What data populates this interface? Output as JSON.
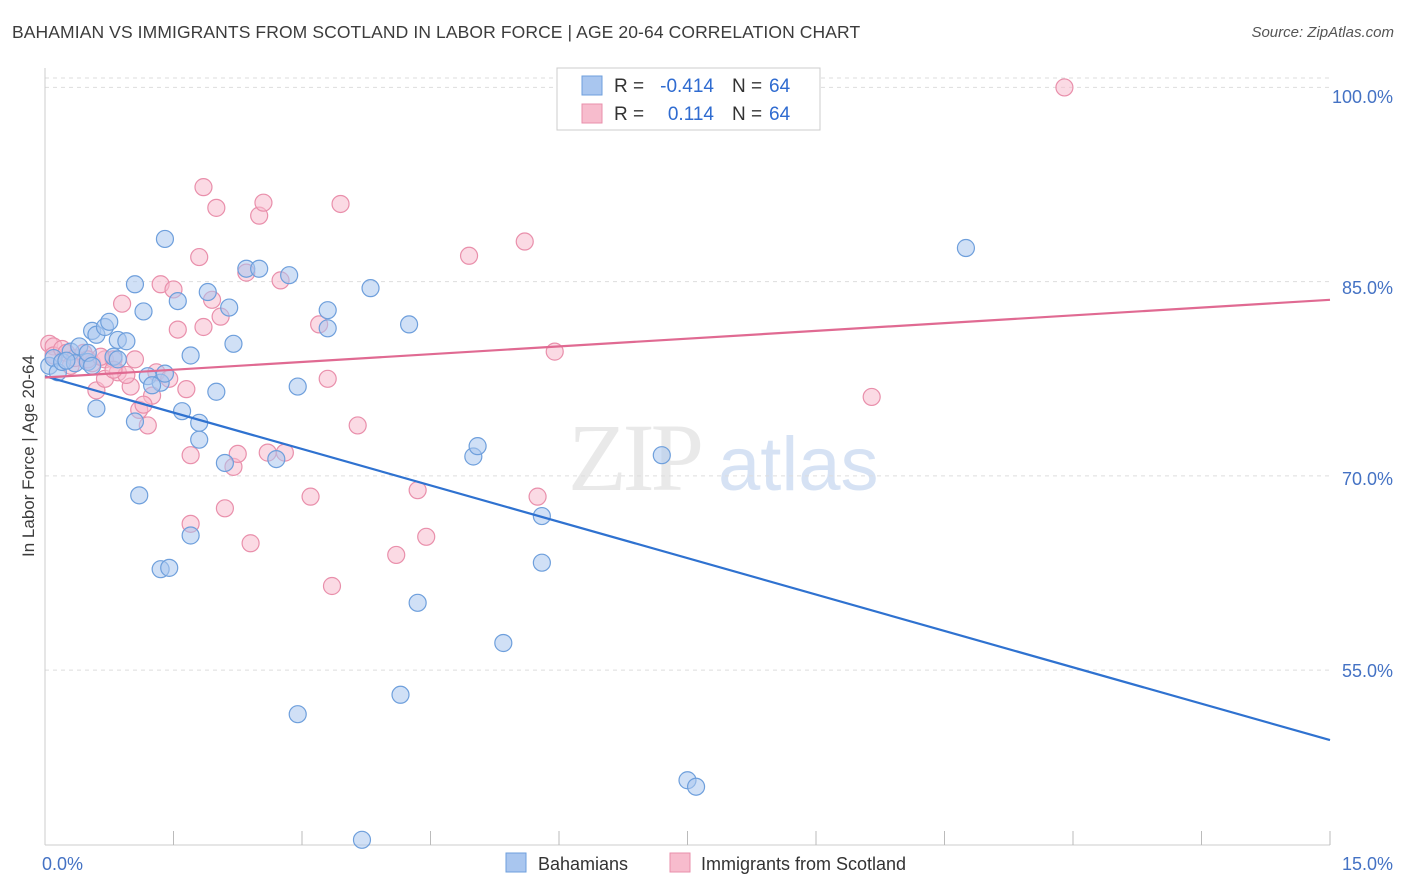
{
  "header": {
    "title": "BAHAMIAN VS IMMIGRANTS FROM SCOTLAND IN LABOR FORCE | AGE 20-64 CORRELATION CHART",
    "source": "Source: ZipAtlas.com"
  },
  "watermark": {
    "zip": "ZIP",
    "atlas": "atlas"
  },
  "colors": {
    "blue_fill": "#a9c6ef",
    "blue_stroke": "#6e9fdc",
    "blue_line": "#2f72d0",
    "pink_fill": "#f7bccd",
    "pink_stroke": "#e98fab",
    "pink_line": "#e06a92",
    "tick_text": "#4472c4",
    "grid": "#dddddd"
  },
  "legend_top": {
    "rows": [
      {
        "r_label": "R =",
        "r_value": "-0.414",
        "n_label": "N =",
        "n_value": "64"
      },
      {
        "r_label": "R =",
        "r_value": "0.114",
        "n_label": "N =",
        "n_value": "64"
      }
    ]
  },
  "legend_bottom": {
    "items": [
      {
        "label": "Bahamians"
      },
      {
        "label": "Immigrants from Scotland"
      }
    ]
  },
  "chart_data": {
    "type": "scatter",
    "title": "BAHAMIAN VS IMMIGRANTS FROM SCOTLAND IN LABOR FORCE | AGE 20-64 CORRELATION CHART",
    "xlabel": "",
    "ylabel": "In Labor Force | Age 20-64",
    "xlim": [
      0,
      15
    ],
    "ylim": [
      41.5,
      101.5
    ],
    "x_tick_labels": [
      "0.0%",
      "15.0%"
    ],
    "y_ticks": [
      55,
      70,
      85,
      100
    ],
    "y_tick_labels": [
      "55.0%",
      "70.0%",
      "85.0%",
      "100.0%"
    ],
    "grid": true,
    "legend_position": "top-center",
    "series": [
      {
        "name": "Bahamians",
        "r": -0.414,
        "n": 64,
        "trend": {
          "x": [
            0,
            15
          ],
          "y": [
            77.7,
            49.6
          ]
        },
        "points": [
          [
            0.05,
            78.5
          ],
          [
            0.1,
            79.1
          ],
          [
            0.15,
            78.0
          ],
          [
            0.2,
            78.8
          ],
          [
            0.3,
            79.6
          ],
          [
            0.35,
            78.7
          ],
          [
            0.4,
            80.0
          ],
          [
            0.5,
            78.8
          ],
          [
            0.5,
            79.5
          ],
          [
            0.55,
            78.5
          ],
          [
            0.55,
            81.2
          ],
          [
            0.6,
            80.9
          ],
          [
            0.6,
            75.2
          ],
          [
            0.7,
            81.5
          ],
          [
            0.75,
            81.9
          ],
          [
            0.8,
            79.2
          ],
          [
            0.85,
            80.5
          ],
          [
            0.85,
            79.0
          ],
          [
            0.95,
            80.4
          ],
          [
            1.05,
            84.8
          ],
          [
            1.05,
            74.2
          ],
          [
            1.1,
            68.5
          ],
          [
            1.15,
            82.7
          ],
          [
            1.2,
            77.7
          ],
          [
            1.35,
            77.2
          ],
          [
            1.4,
            77.9
          ],
          [
            1.4,
            88.3
          ],
          [
            1.55,
            83.5
          ],
          [
            1.6,
            75.0
          ],
          [
            1.7,
            65.4
          ],
          [
            1.7,
            79.3
          ],
          [
            1.8,
            74.1
          ],
          [
            1.8,
            72.8
          ],
          [
            1.9,
            84.2
          ],
          [
            2.0,
            76.5
          ],
          [
            2.1,
            71.0
          ],
          [
            2.15,
            83.0
          ],
          [
            2.2,
            80.2
          ],
          [
            2.35,
            86.0
          ],
          [
            2.5,
            86.0
          ],
          [
            2.7,
            71.3
          ],
          [
            2.85,
            85.5
          ],
          [
            2.95,
            76.9
          ],
          [
            3.3,
            81.4
          ],
          [
            3.3,
            82.8
          ],
          [
            3.8,
            84.5
          ],
          [
            4.25,
            81.7
          ],
          [
            1.35,
            62.8
          ],
          [
            1.45,
            62.9
          ],
          [
            2.95,
            51.6
          ],
          [
            3.7,
            41.9
          ],
          [
            4.15,
            53.1
          ],
          [
            4.35,
            60.2
          ],
          [
            5.0,
            71.5
          ],
          [
            5.05,
            72.3
          ],
          [
            5.35,
            57.1
          ],
          [
            5.8,
            66.9
          ],
          [
            5.8,
            63.3
          ],
          [
            7.2,
            71.6
          ],
          [
            7.5,
            46.5
          ],
          [
            7.6,
            46.0
          ],
          [
            10.75,
            87.6
          ],
          [
            0.25,
            78.9
          ],
          [
            1.25,
            77.0
          ]
        ]
      },
      {
        "name": "Immigrants from Scotland",
        "r": 0.114,
        "n": 64,
        "trend": {
          "x": [
            0,
            15
          ],
          "y": [
            77.6,
            83.6
          ]
        },
        "points": [
          [
            0.05,
            80.2
          ],
          [
            0.1,
            80.0
          ],
          [
            0.1,
            79.3
          ],
          [
            0.2,
            79.8
          ],
          [
            0.25,
            79.5
          ],
          [
            0.3,
            78.5
          ],
          [
            0.35,
            79.1
          ],
          [
            0.45,
            79.5
          ],
          [
            0.55,
            78.7
          ],
          [
            0.6,
            76.6
          ],
          [
            0.7,
            77.5
          ],
          [
            0.7,
            79.0
          ],
          [
            0.8,
            79.0
          ],
          [
            0.85,
            78.0
          ],
          [
            0.9,
            83.3
          ],
          [
            1.0,
            76.9
          ],
          [
            1.05,
            79.0
          ],
          [
            1.1,
            75.1
          ],
          [
            1.2,
            73.9
          ],
          [
            1.25,
            76.2
          ],
          [
            1.3,
            78.0
          ],
          [
            1.35,
            84.8
          ],
          [
            1.45,
            77.5
          ],
          [
            1.5,
            84.4
          ],
          [
            1.55,
            81.3
          ],
          [
            1.65,
            76.7
          ],
          [
            1.7,
            66.3
          ],
          [
            1.7,
            71.6
          ],
          [
            1.8,
            86.9
          ],
          [
            1.85,
            92.3
          ],
          [
            1.95,
            83.6
          ],
          [
            2.0,
            90.7
          ],
          [
            2.1,
            67.5
          ],
          [
            2.2,
            70.7
          ],
          [
            2.25,
            71.7
          ],
          [
            2.35,
            85.7
          ],
          [
            2.4,
            64.8
          ],
          [
            2.5,
            90.1
          ],
          [
            2.55,
            91.1
          ],
          [
            2.6,
            71.8
          ],
          [
            2.75,
            85.1
          ],
          [
            2.8,
            71.8
          ],
          [
            3.1,
            68.4
          ],
          [
            3.2,
            81.7
          ],
          [
            3.3,
            77.5
          ],
          [
            3.35,
            61.5
          ],
          [
            3.45,
            91.0
          ],
          [
            3.65,
            73.9
          ],
          [
            4.1,
            63.9
          ],
          [
            4.35,
            68.9
          ],
          [
            4.45,
            65.3
          ],
          [
            4.95,
            87.0
          ],
          [
            5.6,
            88.1
          ],
          [
            5.75,
            68.4
          ],
          [
            5.95,
            79.6
          ],
          [
            9.65,
            76.1
          ],
          [
            11.9,
            100.0
          ],
          [
            0.5,
            79.0
          ],
          [
            0.95,
            77.8
          ],
          [
            1.15,
            75.5
          ],
          [
            1.85,
            81.5
          ],
          [
            2.05,
            82.3
          ],
          [
            0.65,
            79.2
          ],
          [
            0.8,
            78.2
          ]
        ]
      }
    ]
  }
}
